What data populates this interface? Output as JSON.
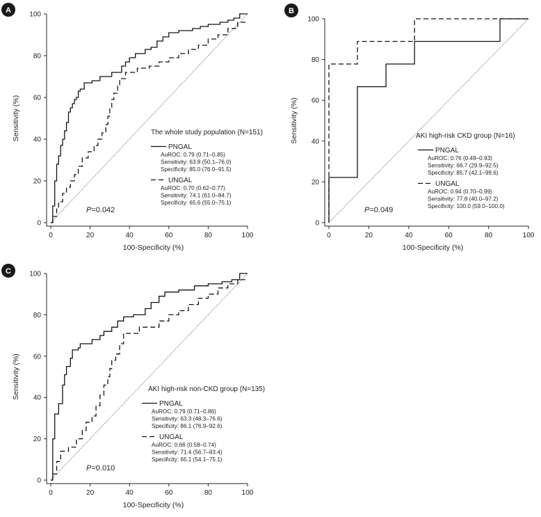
{
  "chart_data": [
    {
      "panel": "A",
      "type": "line",
      "title": "The whole study population (N=151)",
      "xlabel": "100-Specificity (%)",
      "ylabel": "Sensitivity (%)",
      "xlim": [
        0,
        100
      ],
      "ylim": [
        0,
        100
      ],
      "xticks": [
        "0",
        "20",
        "40",
        "60",
        "80",
        "100"
      ],
      "yticks": [
        "0",
        "20",
        "40",
        "60",
        "80",
        "100"
      ],
      "p_value": "0.042",
      "reference_line": true,
      "series": [
        {
          "name": "PNGAL",
          "style": "solid",
          "stats": [
            "AuROC: 0.79 (0.71–0.85)",
            "Sensitivity: 63.8 (50.1–76.0)",
            "Specificity: 85.0 (76.0–91.5)"
          ],
          "x": [
            0,
            1,
            1,
            2,
            2,
            3,
            3,
            4,
            4,
            5,
            5,
            6,
            6,
            7,
            7,
            8,
            8,
            9,
            9,
            10,
            10,
            11,
            11,
            12,
            12,
            13,
            13,
            14,
            14,
            15,
            15,
            17,
            17,
            21,
            21,
            25,
            25,
            31,
            31,
            36,
            36,
            38,
            38,
            40,
            40,
            43,
            43,
            48,
            48,
            51,
            51,
            54,
            54,
            57,
            57,
            60,
            60,
            65,
            65,
            72,
            72,
            76,
            76,
            80,
            80,
            86,
            86,
            90,
            90,
            93,
            93,
            96,
            96,
            100
          ],
          "y": [
            0,
            0,
            8,
            8,
            20,
            20,
            28,
            28,
            32,
            32,
            37,
            37,
            40,
            40,
            44,
            44,
            48,
            48,
            53,
            53,
            55,
            55,
            57,
            57,
            59,
            59,
            60,
            60,
            63,
            63,
            64,
            64,
            67,
            67,
            68,
            68,
            70,
            70,
            72,
            72,
            75,
            75,
            77,
            77,
            79,
            79,
            81,
            81,
            83,
            83,
            84,
            84,
            87,
            87,
            89,
            89,
            91,
            91,
            92,
            92,
            93,
            93,
            94,
            94,
            95,
            95,
            96,
            96,
            97,
            97,
            98,
            98,
            100,
            100
          ]
        },
        {
          "name": "UNGAL",
          "style": "dashed",
          "stats": [
            "AuROC: 0.70 (0.62–0.77)",
            "Sensitivity: 74.1 (61.0–84.7)",
            "Specificity: 65.6 (55.0–75.1)"
          ],
          "x": [
            0,
            1,
            1,
            3,
            3,
            4,
            4,
            6,
            6,
            8,
            8,
            10,
            10,
            12,
            12,
            14,
            14,
            16,
            16,
            19,
            19,
            22,
            22,
            24,
            24,
            26,
            26,
            28,
            28,
            29,
            29,
            30,
            30,
            31,
            31,
            32,
            32,
            34,
            34,
            35,
            35,
            38,
            38,
            44,
            44,
            50,
            50,
            55,
            55,
            60,
            60,
            65,
            65,
            70,
            70,
            75,
            75,
            80,
            80,
            85,
            85,
            90,
            90,
            95,
            95,
            100
          ],
          "y": [
            0,
            0,
            3,
            3,
            7,
            7,
            10,
            10,
            14,
            14,
            17,
            17,
            20,
            20,
            23,
            23,
            27,
            27,
            31,
            31,
            34,
            34,
            37,
            37,
            40,
            40,
            43,
            43,
            47,
            47,
            51,
            51,
            55,
            55,
            59,
            59,
            62,
            62,
            66,
            66,
            69,
            69,
            72,
            72,
            74,
            74,
            75,
            75,
            77,
            77,
            79,
            79,
            81,
            81,
            83,
            83,
            85,
            85,
            88,
            88,
            90,
            90,
            93,
            93,
            96,
            96
          ]
        }
      ]
    },
    {
      "panel": "B",
      "type": "line",
      "title": "AKI high-risk CKD group (N=16)",
      "xlabel": "100-Specificity (%)",
      "ylabel": "Sensitivity (%)",
      "xlim": [
        0,
        100
      ],
      "ylim": [
        0,
        100
      ],
      "xticks": [
        "0",
        "20",
        "40",
        "60",
        "80",
        "100"
      ],
      "yticks": [
        "0",
        "20",
        "40",
        "60",
        "80",
        "100"
      ],
      "p_value": "0.049",
      "reference_line": true,
      "series": [
        {
          "name": "PNGAL",
          "style": "solid",
          "stats": [
            "AuROC: 0.76 (0.49–0.93)",
            "Sensitivity: 66.7 (29.9–92.5)",
            "Specificity: 85.7 (42.1–99.6)"
          ],
          "x": [
            0,
            0,
            14.3,
            14.3,
            28.6,
            28.6,
            42.9,
            42.9,
            85.7,
            85.7,
            100
          ],
          "y": [
            0,
            22.2,
            22.2,
            66.7,
            66.7,
            77.8,
            77.8,
            88.9,
            88.9,
            100,
            100
          ]
        },
        {
          "name": "UNGAL",
          "style": "dashed",
          "stats": [
            "AuROC: 0.94 (0.70–0.99)",
            "Sensitivity: 77.8 (40.0–97.2)",
            "Specificity: 100.0 (59.0–100.0)"
          ],
          "x": [
            0,
            0,
            14.3,
            14.3,
            42.9,
            42.9,
            100
          ],
          "y": [
            0,
            77.8,
            77.8,
            88.9,
            88.9,
            100,
            100
          ]
        }
      ]
    },
    {
      "panel": "C",
      "type": "line",
      "title": "AKI high-risk non-CKD group (N=135)",
      "xlabel": "100-Specificity (%)",
      "ylabel": "Sensitivity (%)",
      "xlim": [
        0,
        100
      ],
      "ylim": [
        0,
        100
      ],
      "xticks": [
        "0",
        "20",
        "40",
        "60",
        "80",
        "100"
      ],
      "yticks": [
        "0",
        "20",
        "40",
        "60",
        "80",
        "100"
      ],
      "p_value": "0.010",
      "reference_line": true,
      "series": [
        {
          "name": "PNGAL",
          "style": "solid",
          "stats": [
            "AuROC: 0.79 (0.71–0.86)",
            "Sensitivity: 63.3 (48.3–76.6)",
            "Specificity: 86.1 (76.9–92.6)"
          ],
          "x": [
            0,
            1,
            1,
            2,
            2,
            4,
            4,
            6,
            6,
            7,
            7,
            8,
            8,
            10,
            10,
            11,
            11,
            14,
            14,
            15,
            15,
            21,
            21,
            25,
            25,
            27,
            27,
            31,
            31,
            34,
            34,
            37,
            37,
            42,
            42,
            48,
            48,
            51,
            51,
            55,
            55,
            58,
            58,
            65,
            65,
            73,
            73,
            80,
            80,
            87,
            87,
            92,
            92,
            96,
            96,
            100
          ],
          "y": [
            0,
            0,
            20,
            20,
            32,
            32,
            37,
            37,
            46,
            46,
            51,
            51,
            55,
            55,
            59,
            59,
            63,
            63,
            64,
            64,
            66,
            66,
            68,
            68,
            70,
            70,
            72,
            72,
            74,
            74,
            77,
            77,
            79,
            79,
            80,
            80,
            83,
            83,
            86,
            86,
            89,
            89,
            91,
            91,
            92,
            92,
            94,
            94,
            95,
            95,
            96,
            96,
            97,
            97,
            100,
            100
          ]
        },
        {
          "name": "UNGAL",
          "style": "dashed",
          "stats": [
            "AuROC: 0.66 (0.58–0.74)",
            "Sensitivity: 71.4 (56.7–83.4)",
            "Specificity: 65.1 (54.1–75.1)"
          ],
          "x": [
            0,
            1,
            1,
            3,
            3,
            5,
            5,
            9,
            9,
            13,
            13,
            16,
            16,
            18,
            18,
            21,
            21,
            23,
            23,
            25,
            25,
            27,
            27,
            29,
            29,
            30,
            30,
            31,
            31,
            33,
            33,
            35,
            35,
            37,
            37,
            45,
            45,
            55,
            55,
            60,
            60,
            65,
            65,
            70,
            70,
            75,
            75,
            80,
            80,
            85,
            85,
            90,
            90,
            95,
            95,
            100
          ],
          "y": [
            0,
            0,
            3,
            3,
            9,
            9,
            14,
            14,
            16,
            16,
            20,
            20,
            24,
            24,
            28,
            28,
            31,
            31,
            36,
            36,
            41,
            41,
            46,
            46,
            50,
            50,
            54,
            54,
            58,
            58,
            61,
            61,
            66,
            66,
            71,
            71,
            74,
            74,
            77,
            77,
            80,
            80,
            82,
            82,
            85,
            85,
            88,
            88,
            90,
            90,
            93,
            93,
            95,
            95,
            97,
            97
          ]
        }
      ]
    }
  ]
}
